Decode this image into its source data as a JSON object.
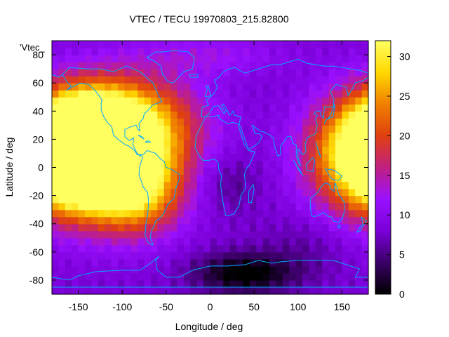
{
  "chart_data": {
    "type": "heatmap",
    "title": "VTEC / TECU 19970803_215.82800",
    "xlabel": "Longitude / deg",
    "ylabel": "Latitude / deg",
    "series_label": "'Vtec_",
    "xlim": [
      -180,
      180
    ],
    "ylim": [
      -90,
      90
    ],
    "xticks": [
      -150,
      -100,
      -50,
      0,
      50,
      100,
      150
    ],
    "yticks": [
      -80,
      -60,
      -40,
      -20,
      0,
      20,
      40,
      60,
      80
    ],
    "colorbar": {
      "min": 0,
      "max": 32,
      "ticks": [
        0,
        5,
        10,
        15,
        20,
        25,
        30
      ],
      "palette": [
        "#000000",
        "#3a0066",
        "#7a00d8",
        "#9a10ff",
        "#c02080",
        "#e04010",
        "#f08000",
        "#ffd800",
        "#ffff60"
      ]
    },
    "features": [
      {
        "lon": -140,
        "lat": 15,
        "value": 31,
        "sx": 35,
        "sy": 22
      },
      {
        "lon": -120,
        "lat": 5,
        "value": 24,
        "sx": 50,
        "sy": 28
      },
      {
        "lon": -90,
        "lat": 30,
        "value": 17,
        "sx": 55,
        "sy": 25
      },
      {
        "lon": 175,
        "lat": 10,
        "value": 21,
        "sx": 45,
        "sy": 28
      },
      {
        "lon": -80,
        "lat": -20,
        "value": 12,
        "sx": 35,
        "sy": 20
      },
      {
        "lon": 40,
        "lat": -75,
        "value": -9,
        "sx": 40,
        "sy": 10
      },
      {
        "lon": 20,
        "lat": -10,
        "value": -3,
        "sx": 25,
        "sy": 15
      },
      {
        "lon": 110,
        "lat": -55,
        "value": -2,
        "sx": 35,
        "sy": 15
      },
      {
        "lon": 0,
        "lat": 80,
        "value": 4,
        "sx": 60,
        "sy": 10
      }
    ],
    "base_value": 8
  }
}
